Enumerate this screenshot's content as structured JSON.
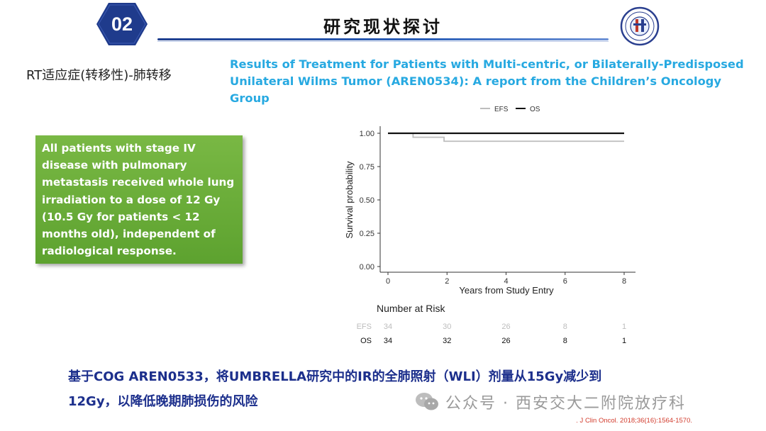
{
  "header": {
    "badge_number": "02",
    "title": "研究现状探讨"
  },
  "left_label": "RT适应症(转移性)-肺转移",
  "study_title": "Results of Treatment for Patients with Multi-centric, or Bilaterally-Predisposed Unilateral Wilms Tumor (AREN0534): A report from the Children’s Oncology Group",
  "note_box": {
    "text": "All patients with stage IV disease with pulmonary metastasis received whole lung irradiation to a dose of 12 Gy (10.5 Gy for patients < 12 months old), independent of radiological response."
  },
  "chart_data": {
    "type": "line",
    "title": "",
    "xlabel": "Years from Study Entry",
    "ylabel": "Survival probability",
    "xlim": [
      0,
      8
    ],
    "ylim": [
      0,
      1
    ],
    "x_ticks": [
      "0",
      "2",
      "4",
      "6",
      "8"
    ],
    "y_ticks": [
      "0.00",
      "0.25",
      "0.50",
      "0.75",
      "1.00"
    ],
    "legend_position": "top",
    "grid": false,
    "series": [
      {
        "name": "EFS",
        "color": "#bdbdbd",
        "step": true,
        "x": [
          0,
          0.85,
          1.9,
          8
        ],
        "y": [
          1.0,
          0.97,
          0.94,
          0.94
        ]
      },
      {
        "name": "OS",
        "color": "#111111",
        "step": true,
        "x": [
          0,
          8
        ],
        "y": [
          1.0,
          1.0
        ]
      }
    ],
    "risk_table": {
      "title": "Number at Risk",
      "rows": [
        {
          "label": "EFS",
          "color": "#bdbdbd",
          "values": [
            "34",
            "30",
            "26",
            "8",
            "1"
          ]
        },
        {
          "label": "OS",
          "color": "#111111",
          "values": [
            "34",
            "32",
            "26",
            "8",
            "1"
          ]
        }
      ]
    }
  },
  "statement": {
    "line1": "基于COG AREN0533，将UMBRELLA研究中的IR的全肺照射（WLI）剂量从15Gy减少到",
    "line2": "12Gy，以降低晚期肺损伤的风险"
  },
  "watermark": "公众号 · 西安交大二附院放疗科",
  "citation": ". J Clin Oncol. 2018;36(16):1564-1570.",
  "colors": {
    "accent_blue": "#27a9e1",
    "navy": "#1c2f8c",
    "badge": "#1f3b8c",
    "green_box": "#5da22f"
  }
}
